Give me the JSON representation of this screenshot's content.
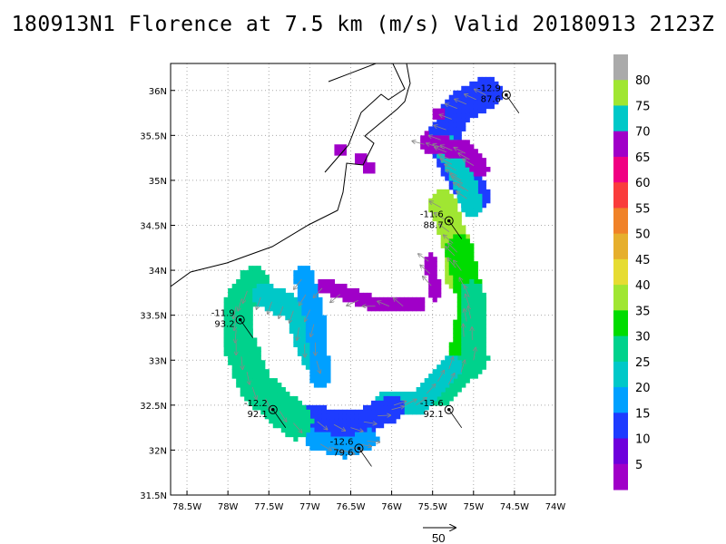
{
  "title": "180913N1 Florence at 7.5 km (m/s) Valid 20180913 2123Z",
  "chart_data": {
    "type": "heatmap",
    "title": "180913N1 Florence at 7.5 km (m/s) Valid 20180913 2123Z",
    "xlim": [
      -78.7,
      -74.0
    ],
    "ylim": [
      31.5,
      36.3
    ],
    "x_tick_labels": [
      "78.5W",
      "78W",
      "77.5W",
      "77W",
      "76.5W",
      "76W",
      "75.5W",
      "75W",
      "74.5W",
      "74W"
    ],
    "x_ticks": [
      -78.5,
      -78.0,
      -77.5,
      -77.0,
      -76.5,
      -76.0,
      -75.5,
      -75.0,
      -74.5,
      -74.0
    ],
    "y_tick_labels": [
      "31.5N",
      "32N",
      "32.5N",
      "33N",
      "33.5N",
      "34N",
      "34.5N",
      "35N",
      "35.5N",
      "36N"
    ],
    "y_ticks": [
      31.5,
      32.0,
      32.5,
      33.0,
      33.5,
      34.0,
      34.5,
      35.0,
      35.5,
      36.0
    ],
    "grid": true,
    "colorbar": {
      "labels": [
        "5",
        "10",
        "15",
        "20",
        "25",
        "30",
        "35",
        "40",
        "45",
        "50",
        "55",
        "60",
        "65",
        "70",
        "75",
        "80"
      ],
      "colors": [
        "#a000c8",
        "#6e00dc",
        "#1e3cff",
        "#00a0ff",
        "#00c8c8",
        "#00d28c",
        "#00dc00",
        "#a0e632",
        "#e6dc32",
        "#e6af2d",
        "#f08228",
        "#fa3c3c",
        "#f00082",
        "#a000c8",
        "#00c8c8",
        "#a0e632",
        "#aaaaaa"
      ]
    },
    "flight_points": [
      {
        "lon": -74.6,
        "lat": 35.95,
        "temp": "-12.9",
        "wind": "87.6"
      },
      {
        "lon": -75.3,
        "lat": 34.55,
        "temp": "-11.6",
        "wind": "88.7"
      },
      {
        "lon": -77.85,
        "lat": 33.45,
        "temp": "-11.9",
        "wind": "93.2"
      },
      {
        "lon": -77.45,
        "lat": 32.45,
        "temp": "-12.2",
        "wind": "92.1"
      },
      {
        "lon": -75.3,
        "lat": 32.45,
        "temp": "-13.6",
        "wind": "92.1"
      },
      {
        "lon": -76.4,
        "lat": 32.02,
        "temp": "-12.6",
        "wind": "79.6"
      }
    ],
    "reference_vector": {
      "label": "50",
      "value": 50
    }
  }
}
